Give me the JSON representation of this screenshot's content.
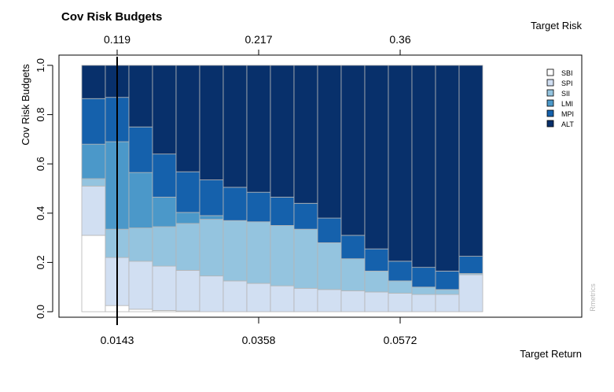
{
  "chart_data": {
    "type": "bar",
    "stacked": true,
    "title": "Cov Risk Budgets",
    "ylabel": "Cov Risk Budgets",
    "xlabel": "Target Return",
    "top_axis_label": "Target Risk",
    "ylim": [
      0,
      1
    ],
    "y_ticks": [
      "0.0",
      "0.2",
      "0.4",
      "0.6",
      "0.8",
      "1.0"
    ],
    "bar_count": 17,
    "x_ticks_bottom": [
      {
        "label": "0.0143",
        "bar_index": 1
      },
      {
        "label": "0.0358",
        "bar_index": 7
      },
      {
        "label": "0.0572",
        "bar_index": 13
      }
    ],
    "x_ticks_top": [
      {
        "label": "0.119",
        "bar_index": 1
      },
      {
        "label": "0.217",
        "bar_index": 7
      },
      {
        "label": "0.36",
        "bar_index": 13
      }
    ],
    "highlight_bar_index": 1,
    "series": [
      {
        "name": "SBI",
        "color": "#ffffff",
        "values": [
          0.31,
          0.025,
          0.01,
          0.005,
          0.003,
          0.0,
          0.0,
          0.0,
          0.0,
          0.0,
          0.0,
          0.0,
          0.0,
          0.0,
          0.0,
          0.0,
          0.0
        ]
      },
      {
        "name": "SPI",
        "color": "#d1dff2",
        "values": [
          0.2,
          0.195,
          0.195,
          0.18,
          0.165,
          0.145,
          0.125,
          0.115,
          0.105,
          0.095,
          0.09,
          0.085,
          0.08,
          0.075,
          0.07,
          0.07,
          0.15
        ]
      },
      {
        "name": "SII",
        "color": "#94c4df",
        "values": [
          0.03,
          0.115,
          0.135,
          0.16,
          0.19,
          0.23,
          0.245,
          0.25,
          0.245,
          0.24,
          0.19,
          0.13,
          0.085,
          0.05,
          0.03,
          0.02,
          0.005
        ]
      },
      {
        "name": "LMI",
        "color": "#4b98c9",
        "values": [
          0.14,
          0.355,
          0.225,
          0.12,
          0.045,
          0.015,
          0.0,
          0.0,
          0.0,
          0.0,
          0.0,
          0.0,
          0.0,
          0.0,
          0.0,
          0.0,
          0.0
        ]
      },
      {
        "name": "MPI",
        "color": "#1561ac",
        "values": [
          0.185,
          0.18,
          0.185,
          0.175,
          0.165,
          0.145,
          0.135,
          0.12,
          0.115,
          0.105,
          0.1,
          0.095,
          0.09,
          0.08,
          0.08,
          0.075,
          0.07
        ]
      },
      {
        "name": "ALT",
        "color": "#08306b",
        "values": [
          0.135,
          0.13,
          0.25,
          0.36,
          0.432,
          0.465,
          0.495,
          0.515,
          0.535,
          0.56,
          0.62,
          0.69,
          0.745,
          0.795,
          0.82,
          0.835,
          0.775
        ]
      }
    ],
    "legend_position": "top-right",
    "watermark": "Rmetrics"
  }
}
